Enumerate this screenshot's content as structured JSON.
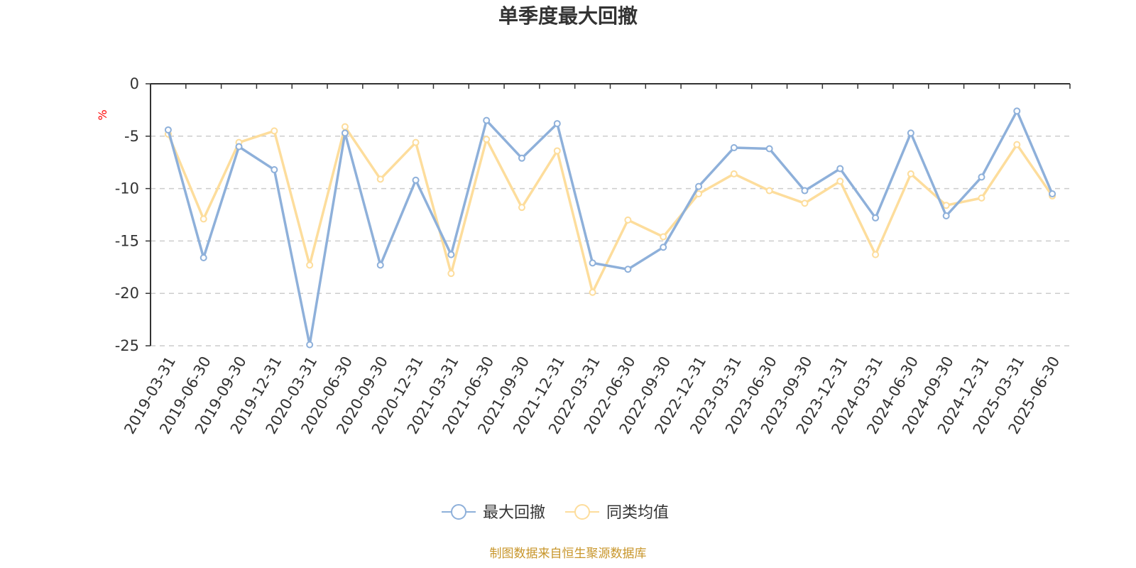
{
  "chart_data": {
    "type": "line",
    "title": "单季度最大回撤",
    "ylabel": "%",
    "ylim": [
      -25,
      0
    ],
    "yticks": [
      0,
      -5,
      -10,
      -15,
      -20,
      -25
    ],
    "grid": true,
    "legend_position": "bottom",
    "categories": [
      "2019-03-31",
      "2019-06-30",
      "2019-09-30",
      "2019-12-31",
      "2020-03-31",
      "2020-06-30",
      "2020-09-30",
      "2020-12-31",
      "2021-03-31",
      "2021-06-30",
      "2021-09-30",
      "2021-12-31",
      "2022-03-31",
      "2022-06-30",
      "2022-09-30",
      "2022-12-31",
      "2023-03-31",
      "2023-06-30",
      "2023-09-30",
      "2023-12-31",
      "2024-03-31",
      "2024-06-30",
      "2024-09-30",
      "2024-12-31",
      "2025-03-31",
      "2025-06-30"
    ],
    "series": [
      {
        "name": "最大回撤",
        "color": "#8eb0da",
        "values": [
          -4.4,
          -16.6,
          -6.0,
          -8.2,
          -24.9,
          -4.7,
          -17.3,
          -9.2,
          -16.3,
          -3.5,
          -7.1,
          -3.8,
          -17.1,
          -17.7,
          -15.6,
          -9.8,
          -6.1,
          -6.2,
          -10.2,
          -8.1,
          -12.8,
          -4.7,
          -12.6,
          -8.9,
          -2.6,
          -10.5
        ]
      },
      {
        "name": "同类均值",
        "color": "#fddd9c",
        "values": [
          -4.8,
          -12.9,
          -5.6,
          -4.5,
          -17.3,
          -4.1,
          -9.1,
          -5.6,
          -18.1,
          -5.3,
          -11.8,
          -6.4,
          -19.9,
          -13.0,
          -14.6,
          -10.5,
          -8.6,
          -10.2,
          -11.4,
          -9.3,
          -16.3,
          -8.6,
          -11.6,
          -10.9,
          -5.8,
          -10.7
        ]
      }
    ]
  },
  "footer": {
    "source": "制图数据来自恒生聚源数据库"
  }
}
